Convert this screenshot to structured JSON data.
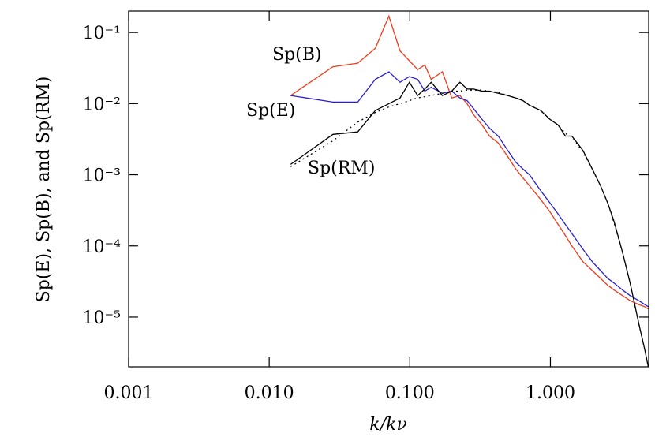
{
  "chart_data": {
    "type": "line",
    "xlabel": "k/kν",
    "ylabel": "Sp(E), Sp(B), and Sp(RM)",
    "xlog": true,
    "ylog": true,
    "xlim": [
      0.001,
      5.0
    ],
    "ylim": [
      2e-06,
      0.2
    ],
    "xticks": [
      0.001,
      {
        "value": 0.01,
        "label": "0.010"
      },
      {
        "value": 0.1,
        "label": "0.100"
      },
      {
        "value": 1,
        "label": "1.000"
      }
    ],
    "yticks": [
      {
        "value": 1e-05,
        "label": "10⁻⁵"
      },
      {
        "value": 0.0001,
        "label": "10⁻⁴"
      },
      {
        "value": 0.001,
        "label": "10⁻³"
      },
      {
        "value": 0.01,
        "label": "10⁻²"
      },
      {
        "value": 0.1,
        "label": "10⁻¹"
      }
    ],
    "x": [
      0.0142,
      0.0284,
      0.0426,
      0.0568,
      0.071,
      0.0852,
      0.0994,
      0.1136,
      0.1278,
      0.142,
      0.1704,
      0.1988,
      0.2272,
      0.2556,
      0.284,
      0.3266,
      0.3692,
      0.426,
      0.497,
      0.568,
      0.639,
      0.71,
      0.852,
      0.994,
      1.136,
      1.278,
      1.42,
      1.704,
      1.988,
      2.272,
      2.556,
      2.84,
      3.266,
      3.692,
      4.26,
      4.686,
      4.97
    ],
    "series": [
      {
        "name": "Sp(B)",
        "color": "#ee3a1c",
        "values": [
          0.013,
          0.033,
          0.037,
          0.06,
          0.17,
          0.055,
          0.04,
          0.03,
          0.035,
          0.022,
          0.028,
          0.012,
          0.013,
          0.01,
          0.007,
          0.005,
          0.0035,
          0.0028,
          0.0018,
          0.0012,
          0.0009,
          0.0007,
          0.00045,
          0.0003,
          0.0002,
          0.00014,
          0.0001,
          6e-05,
          4.5e-05,
          3.5e-05,
          2.8e-05,
          2.4e-05,
          2e-05,
          1.7e-05,
          1.5e-05,
          1.4e-05,
          1.3e-05
        ]
      },
      {
        "name": "Sp(E)",
        "color": "#2b1fcc",
        "values": [
          0.013,
          0.0105,
          0.0105,
          0.022,
          0.028,
          0.02,
          0.024,
          0.022,
          0.015,
          0.017,
          0.014,
          0.015,
          0.012,
          0.011,
          0.0085,
          0.006,
          0.0045,
          0.0035,
          0.0022,
          0.0015,
          0.0012,
          0.001,
          0.0006,
          0.0004,
          0.00028,
          0.0002,
          0.00015,
          9e-05,
          6e-05,
          4.5e-05,
          3.5e-05,
          3e-05,
          2.4e-05,
          2e-05,
          1.7e-05,
          1.5e-05,
          1.4e-05
        ]
      },
      {
        "name": "Sp(RM)",
        "color": "#000000",
        "values": [
          0.0014,
          0.0037,
          0.004,
          0.008,
          0.01,
          0.012,
          0.02,
          0.013,
          0.016,
          0.02,
          0.013,
          0.015,
          0.02,
          0.016,
          0.016,
          0.015,
          0.015,
          0.014,
          0.013,
          0.012,
          0.011,
          0.0095,
          0.008,
          0.006,
          0.005,
          0.0035,
          0.0035,
          0.0022,
          0.0012,
          0.0007,
          0.0004,
          0.00022,
          8e-05,
          3e-05,
          8e-06,
          3.5e-06,
          2e-06
        ]
      },
      {
        "color": "#000000",
        "dash": true,
        "values": [
          0.0013,
          0.003,
          0.0055,
          0.0075,
          0.009,
          0.01,
          0.011,
          0.012,
          0.0125,
          0.013,
          0.014,
          0.015,
          0.015,
          0.0155,
          0.0155,
          0.0155,
          0.015,
          0.0143,
          0.013,
          0.012,
          0.011,
          0.0095,
          0.008,
          0.006,
          0.005,
          0.0038,
          0.0034,
          0.0021,
          0.0012,
          0.0007,
          0.0004,
          0.00021,
          8e-05,
          3e-05,
          8e-06,
          3.5e-06,
          2e-06
        ]
      }
    ]
  }
}
